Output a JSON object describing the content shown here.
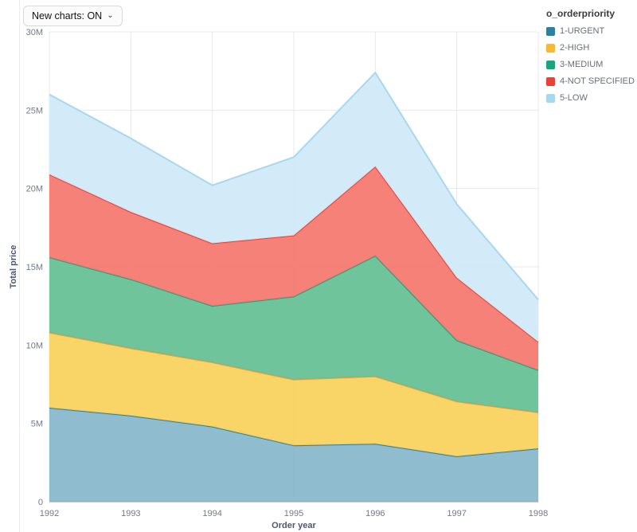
{
  "controls": {
    "new_charts_label": "New charts: ON",
    "chevron": "⌄"
  },
  "legend": {
    "title": "o_orderpriority"
  },
  "chart_data": {
    "type": "area",
    "stacked": true,
    "title": "",
    "xlabel": "Order year",
    "ylabel": "Total price",
    "x": [
      "1992",
      "1993",
      "1994",
      "1995",
      "1996",
      "1997",
      "1998"
    ],
    "ylim_m": [
      0,
      30
    ],
    "y_ticks": [
      {
        "value": 0,
        "label": "0"
      },
      {
        "value": 5,
        "label": "5M"
      },
      {
        "value": 10,
        "label": "10M"
      },
      {
        "value": 15,
        "label": "15M"
      },
      {
        "value": 20,
        "label": "20M"
      },
      {
        "value": 25,
        "label": "25M"
      },
      {
        "value": 30,
        "label": "30M"
      }
    ],
    "unit": "millions",
    "legend_position": "top-right",
    "grid": true,
    "series": [
      {
        "name": "1-URGENT",
        "swatch": "#2f7f9f",
        "line": "#2f7f9f",
        "fill": "#86b6ca",
        "values_m": [
          6.0,
          5.5,
          4.8,
          3.6,
          3.7,
          2.9,
          3.4
        ]
      },
      {
        "name": "2-HIGH",
        "swatch": "#f9b832",
        "line": "#f19d3b",
        "fill": "#f8d05a",
        "values_m": [
          4.8,
          4.3,
          4.1,
          4.2,
          4.3,
          3.5,
          2.3
        ]
      },
      {
        "name": "3-MEDIUM",
        "swatch": "#1ea47c",
        "line": "#1ea47c",
        "fill": "#64bf92",
        "values_m": [
          4.8,
          4.4,
          3.6,
          5.3,
          7.7,
          3.9,
          2.7
        ]
      },
      {
        "name": "4-NOT SPECIFIED",
        "swatch": "#ea4036",
        "line": "#ea4036",
        "fill": "#f4766c",
        "values_m": [
          5.3,
          4.3,
          4.0,
          3.9,
          5.7,
          4.0,
          1.8
        ]
      },
      {
        "name": "5-LOW",
        "swatch": "#a8d7f0",
        "line": "#a8d7f0",
        "fill": "#cfe9f7",
        "values_m": [
          5.1,
          4.7,
          3.7,
          5.0,
          6.0,
          4.7,
          2.7
        ]
      }
    ]
  }
}
